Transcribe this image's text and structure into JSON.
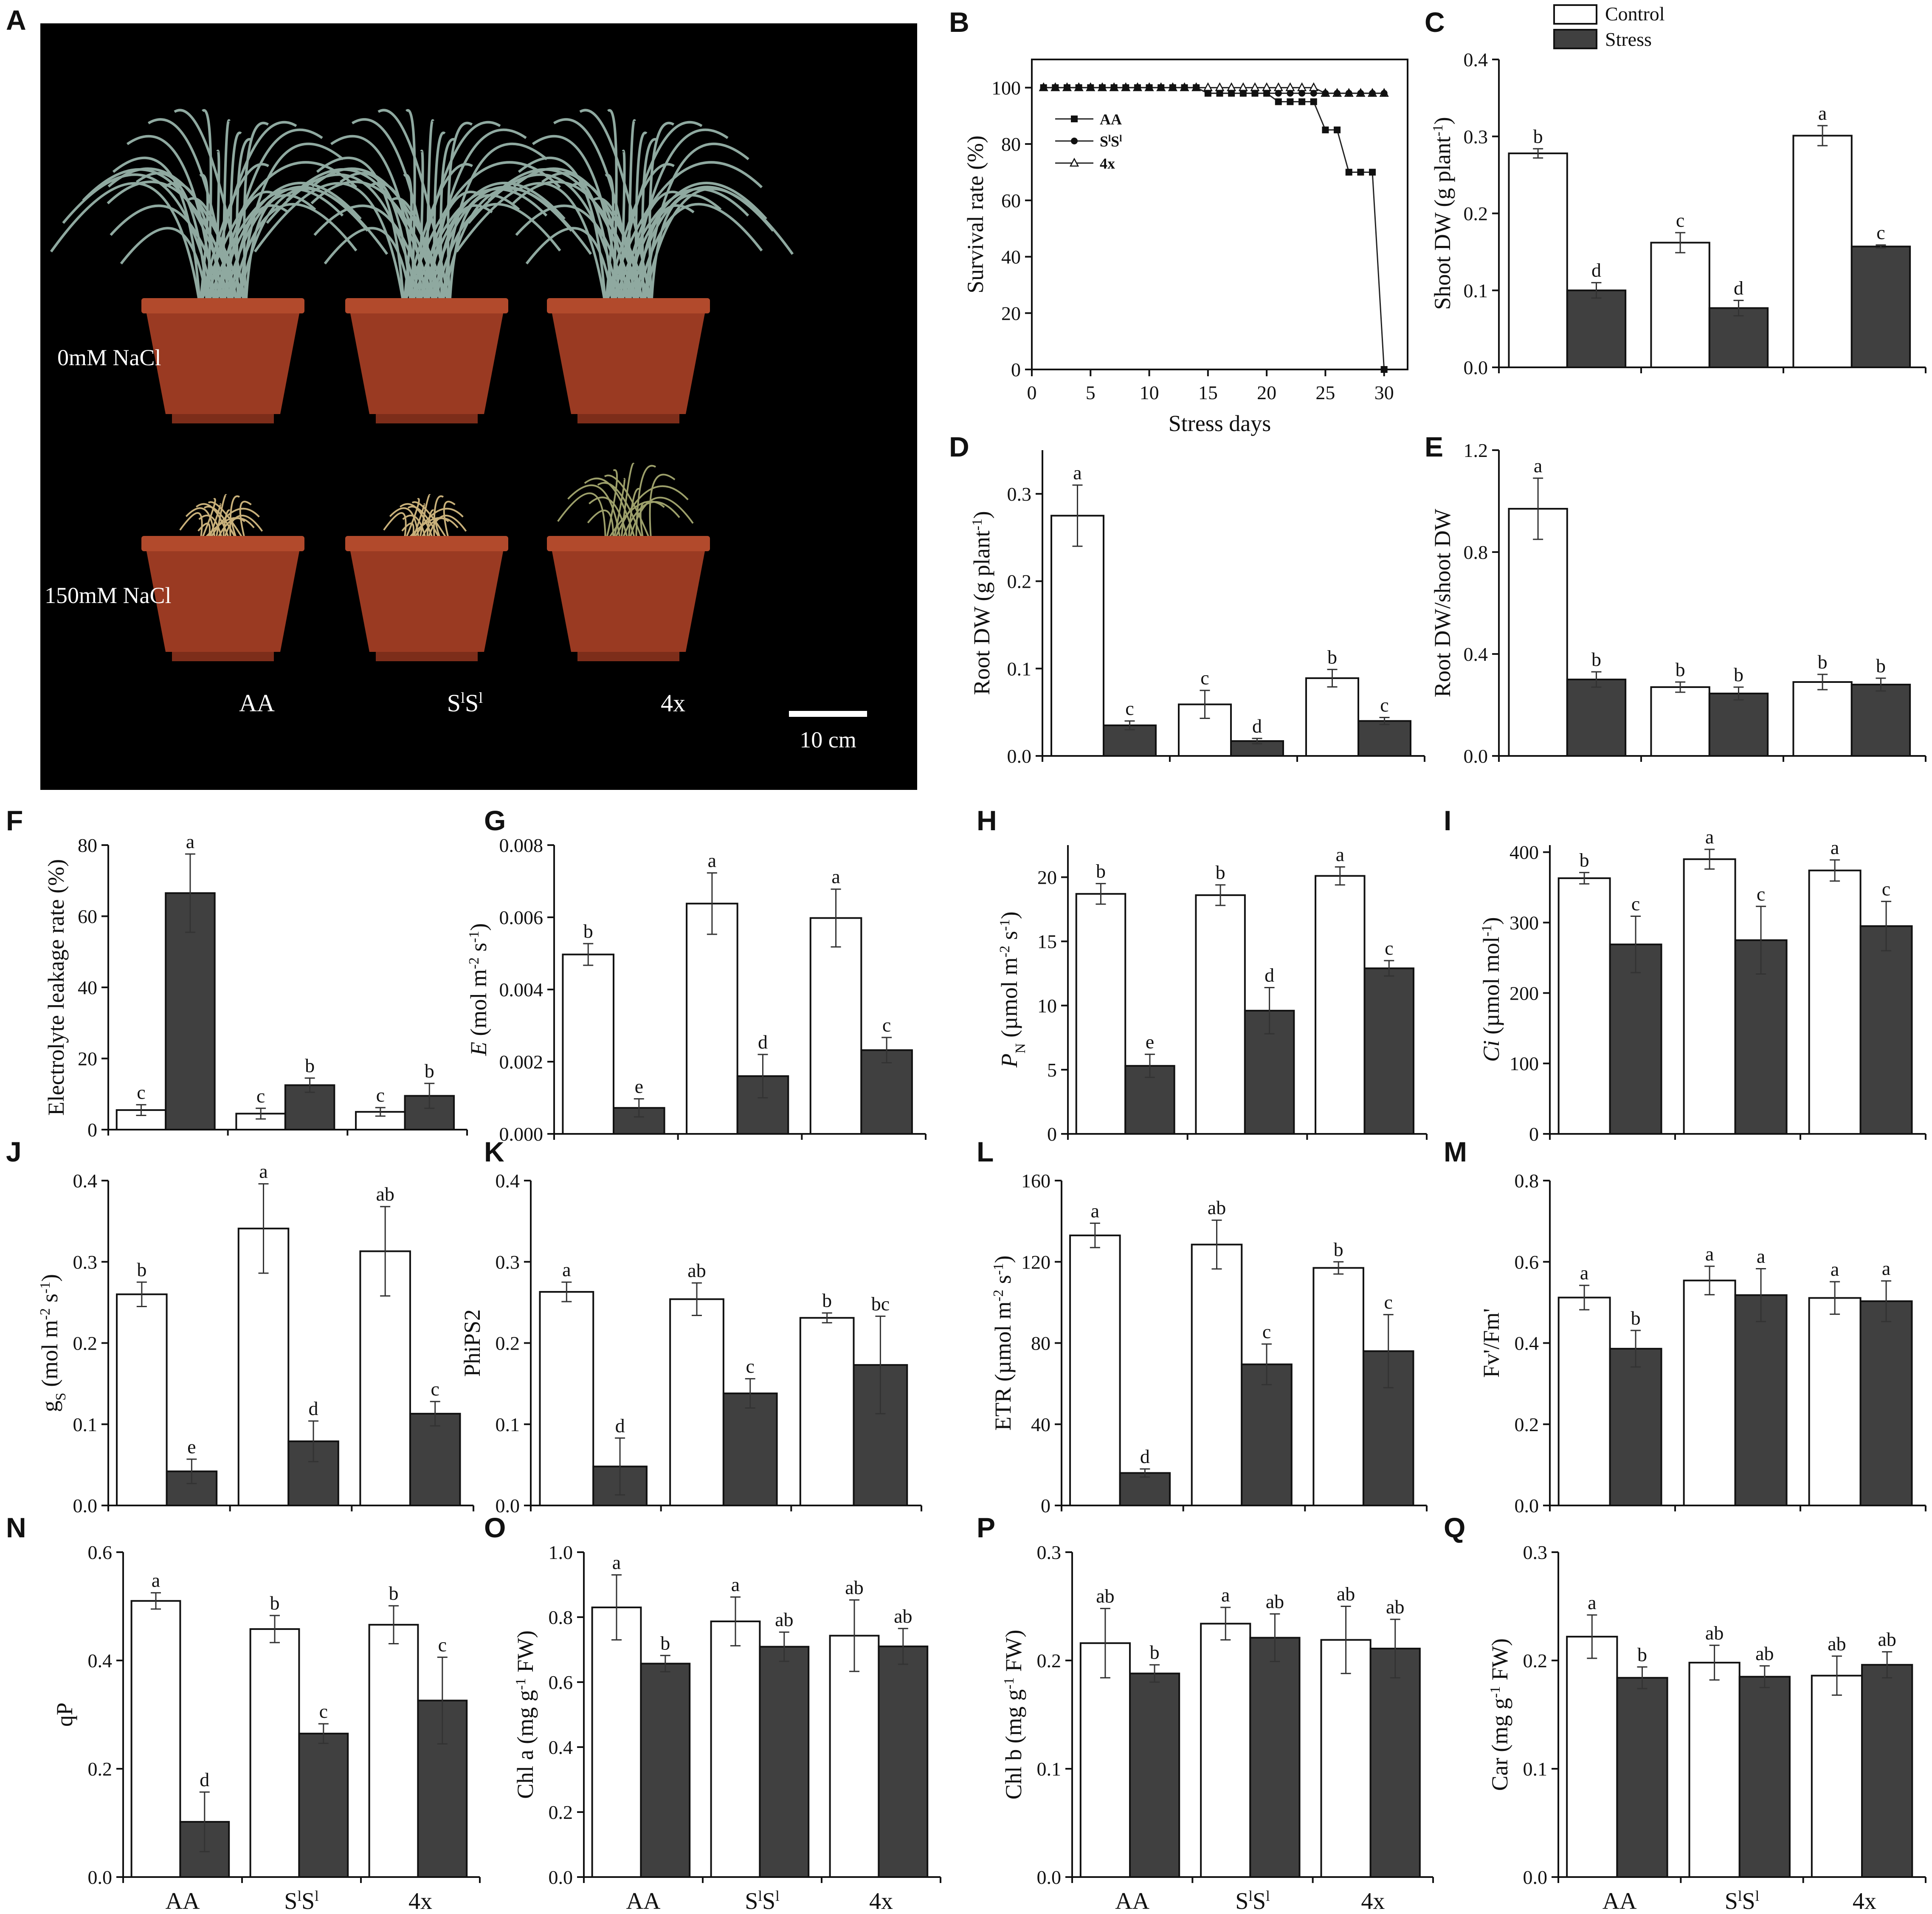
{
  "legend": {
    "control": "Control",
    "stress": "Stress"
  },
  "colors": {
    "control": "#ffffff",
    "stress": "#404040",
    "axis": "#111111",
    "photo_bg": "#000000",
    "pot": "#9a3a22",
    "grass": "#8fa9a0"
  },
  "photo": {
    "label": "A",
    "row_labels": [
      "0mM NaCl",
      "150mM NaCl"
    ],
    "genotypes": [
      "AA",
      "S",
      "4x"
    ],
    "scale_label": "10 cm"
  },
  "genotype_labels": [
    "AA",
    "S",
    "4x"
  ],
  "chart_data": [
    {
      "label": "B",
      "type": "line",
      "xlabel": "Stress days",
      "ylabel": "Survival rate (%)",
      "xlim": [
        0,
        32
      ],
      "ylim": [
        0,
        110
      ],
      "xticks": [
        0,
        5,
        10,
        15,
        20,
        25,
        30
      ],
      "yticks": [
        0,
        20,
        40,
        60,
        80,
        100
      ],
      "legend_position": "left-upper",
      "series": [
        {
          "name": "AA",
          "marker": "square",
          "x": [
            1,
            2,
            3,
            4,
            5,
            6,
            7,
            8,
            9,
            10,
            11,
            12,
            13,
            14,
            15,
            16,
            17,
            18,
            19,
            20,
            21,
            22,
            23,
            24,
            25,
            26,
            27,
            28,
            29,
            30
          ],
          "y": [
            100,
            100,
            100,
            100,
            100,
            100,
            100,
            100,
            100,
            100,
            100,
            100,
            100,
            100,
            98,
            98,
            98,
            98,
            98,
            98,
            95,
            95,
            95,
            95,
            85,
            85,
            70,
            70,
            70,
            0
          ]
        },
        {
          "name": "S",
          "marker": "circle",
          "x": [
            1,
            2,
            3,
            4,
            5,
            6,
            7,
            8,
            9,
            10,
            11,
            12,
            13,
            14,
            15,
            16,
            17,
            18,
            19,
            20,
            21,
            22,
            23,
            24,
            25,
            26,
            27,
            28,
            29,
            30
          ],
          "y": [
            100,
            100,
            100,
            100,
            100,
            100,
            100,
            100,
            100,
            100,
            100,
            100,
            100,
            100,
            98,
            98,
            98,
            98,
            98,
            98,
            98,
            98,
            98,
            98,
            98,
            98,
            98,
            98,
            98,
            98
          ]
        },
        {
          "name": "4x",
          "marker": "triangle",
          "x": [
            1,
            2,
            3,
            4,
            5,
            6,
            7,
            8,
            9,
            10,
            11,
            12,
            13,
            14,
            15,
            16,
            17,
            18,
            19,
            20,
            21,
            22,
            23,
            24,
            25,
            26,
            27,
            28,
            29,
            30
          ],
          "y": [
            100,
            100,
            100,
            100,
            100,
            100,
            100,
            100,
            100,
            100,
            100,
            100,
            100,
            100,
            100,
            100,
            100,
            100,
            100,
            100,
            100,
            100,
            100,
            100,
            98,
            98,
            98,
            98,
            98,
            98
          ]
        }
      ]
    },
    {
      "label": "C",
      "type": "bar",
      "ylabel": "Shoot DW (g plant",
      "ylabel_sup": "-1",
      "ylabel_end": ")",
      "ylim": [
        0,
        0.4
      ],
      "yticks": [
        "0.0",
        "0.1",
        "0.2",
        "0.3",
        "0.4"
      ],
      "control": [
        0.278,
        0.162,
        0.301
      ],
      "stress": [
        0.1,
        0.077,
        0.157
      ],
      "control_err": [
        0.006,
        0.013,
        0.013
      ],
      "stress_err": [
        0.01,
        0.01,
        0.002
      ],
      "control_letters": [
        "b",
        "c",
        "a"
      ],
      "stress_letters": [
        "d",
        "d",
        "c"
      ]
    },
    {
      "label": "D",
      "type": "bar",
      "ylabel": "Root DW (g plant",
      "ylabel_sup": "-1",
      "ylabel_end": ")",
      "ylim": [
        0,
        0.35
      ],
      "yticks": [
        "0.0",
        "0.1",
        "0.2",
        "0.3"
      ],
      "control": [
        0.275,
        0.059,
        0.089
      ],
      "stress": [
        0.035,
        0.017,
        0.04
      ],
      "control_err": [
        0.035,
        0.016,
        0.01
      ],
      "stress_err": [
        0.005,
        0.003,
        0.004
      ],
      "control_letters": [
        "a",
        "c",
        "b"
      ],
      "stress_letters": [
        "c",
        "d",
        "c"
      ]
    },
    {
      "label": "E",
      "type": "bar",
      "ylabel": "Root DW/shoot DW",
      "ylim": [
        0,
        1.2
      ],
      "yticks": [
        "0.0",
        "0.4",
        "0.8",
        "1.2"
      ],
      "control": [
        0.97,
        0.27,
        0.29
      ],
      "stress": [
        0.3,
        0.245,
        0.28
      ],
      "control_err": [
        0.12,
        0.02,
        0.03
      ],
      "stress_err": [
        0.03,
        0.025,
        0.025
      ],
      "control_letters": [
        "a",
        "b",
        "b"
      ],
      "stress_letters": [
        "b",
        "b",
        "b"
      ]
    },
    {
      "label": "F",
      "type": "bar",
      "ylabel": "Electrolyte leakage rate  (%)",
      "ylim": [
        0,
        80
      ],
      "yticks": [
        "0",
        "20",
        "40",
        "60",
        "80"
      ],
      "control": [
        5.5,
        4.5,
        5.0
      ],
      "stress": [
        66.5,
        12.5,
        9.5
      ],
      "control_err": [
        1.5,
        1.5,
        1.2
      ],
      "stress_err": [
        11.0,
        2.0,
        3.5
      ],
      "control_letters": [
        "c",
        "c",
        "c"
      ],
      "stress_letters": [
        "a",
        "b",
        "b"
      ]
    },
    {
      "label": "G",
      "type": "bar",
      "ylabel_italic": "E",
      "ylabel": " (mol m",
      "ylabel_sup": "-2",
      "ylabel_mid": " s",
      "ylabel_sup2": "-1",
      "ylabel_end": ")",
      "ylim": [
        0,
        0.008
      ],
      "yticks": [
        "0.000",
        "0.002",
        "0.004",
        "0.006",
        "0.008"
      ],
      "control": [
        0.00497,
        0.00638,
        0.00598
      ],
      "stress": [
        0.00072,
        0.0016,
        0.00232
      ],
      "control_err": [
        0.0003,
        0.00085,
        0.0008
      ],
      "stress_err": [
        0.00025,
        0.0006,
        0.00035
      ],
      "control_letters": [
        "b",
        "a",
        "a"
      ],
      "stress_letters": [
        "e",
        "d",
        "c"
      ]
    },
    {
      "label": "H",
      "type": "bar",
      "ylabel_italic": "P",
      "ylabel_sub": "N",
      "ylabel": " (µmol m",
      "ylabel_sup": "-2",
      "ylabel_mid": " s",
      "ylabel_sup2": "-1",
      "ylabel_end": ")",
      "ylim": [
        0,
        22.5
      ],
      "yticks": [
        "0",
        "5",
        "10",
        "15",
        "20"
      ],
      "control": [
        18.7,
        18.6,
        20.1
      ],
      "stress": [
        5.3,
        9.6,
        12.9
      ],
      "control_err": [
        0.8,
        0.8,
        0.7
      ],
      "stress_err": [
        0.9,
        1.8,
        0.6
      ],
      "control_letters": [
        "b",
        "b",
        "a"
      ],
      "stress_letters": [
        "e",
        "d",
        "c"
      ]
    },
    {
      "label": "I",
      "type": "bar",
      "ylabel_italic": "Ci",
      "ylabel": " (µmol mol",
      "ylabel_sup": "-1",
      "ylabel_end": ")",
      "ylim": [
        0,
        410
      ],
      "yticks": [
        "0",
        "100",
        "200",
        "300",
        "400"
      ],
      "control": [
        363,
        390,
        374
      ],
      "stress": [
        269,
        275,
        295
      ],
      "control_err": [
        8,
        14,
        15
      ],
      "stress_err": [
        40,
        48,
        35
      ],
      "control_letters": [
        "b",
        "a",
        "a"
      ],
      "stress_letters": [
        "c",
        "c",
        "c"
      ]
    },
    {
      "label": "J",
      "type": "bar",
      "ylabel": "g",
      "ylabel_sub": "S",
      "ylabel_rest": " (mol m",
      "ylabel_sup": "-2",
      "ylabel_mid": " s",
      "ylabel_sup2": "-1",
      "ylabel_end": ")",
      "ylim": [
        0,
        0.4
      ],
      "yticks": [
        "0.0",
        "0.1",
        "0.2",
        "0.3",
        "0.4"
      ],
      "control": [
        0.26,
        0.341,
        0.313
      ],
      "stress": [
        0.042,
        0.079,
        0.113
      ],
      "control_err": [
        0.015,
        0.055,
        0.055
      ],
      "stress_err": [
        0.015,
        0.025,
        0.015
      ],
      "control_letters": [
        "b",
        "a",
        "ab"
      ],
      "stress_letters": [
        "e",
        "d",
        "c"
      ]
    },
    {
      "label": "K",
      "type": "bar",
      "ylabel": "PhiPS2",
      "ylim": [
        0,
        0.4
      ],
      "yticks": [
        "0.0",
        "0.1",
        "0.2",
        "0.3",
        "0.4"
      ],
      "control": [
        0.263,
        0.254,
        0.231
      ],
      "stress": [
        0.048,
        0.138,
        0.173
      ],
      "control_err": [
        0.012,
        0.02,
        0.006
      ],
      "stress_err": [
        0.035,
        0.018,
        0.06
      ],
      "control_letters": [
        "a",
        "ab",
        "b"
      ],
      "stress_letters": [
        "d",
        "c",
        "bc"
      ]
    },
    {
      "label": "L",
      "type": "bar",
      "ylabel": "ETR (µmol m",
      "ylabel_sup": "-2",
      "ylabel_mid": " s",
      "ylabel_sup2": "-1",
      "ylabel_end": ")",
      "ylim": [
        0,
        160
      ],
      "yticks": [
        "0",
        "40",
        "80",
        "120",
        "160"
      ],
      "control": [
        133,
        128.5,
        117
      ],
      "stress": [
        16,
        69.5,
        76
      ],
      "control_err": [
        6,
        12,
        3
      ],
      "stress_err": [
        2,
        10,
        18
      ],
      "control_letters": [
        "a",
        "ab",
        "b"
      ],
      "stress_letters": [
        "d",
        "c",
        "c"
      ]
    },
    {
      "label": "M",
      "type": "bar",
      "ylabel": "Fv'/Fm'",
      "ylim": [
        0,
        0.8
      ],
      "yticks": [
        "0.0",
        "0.2",
        "0.4",
        "0.6",
        "0.8"
      ],
      "control": [
        0.512,
        0.554,
        0.511
      ],
      "stress": [
        0.386,
        0.518,
        0.503
      ],
      "control_err": [
        0.03,
        0.035,
        0.04
      ],
      "stress_err": [
        0.045,
        0.065,
        0.05
      ],
      "control_letters": [
        "a",
        "a",
        "a"
      ],
      "stress_letters": [
        "b",
        "a",
        "a"
      ]
    },
    {
      "label": "N",
      "type": "bar",
      "ylabel": "qP",
      "ylim": [
        0,
        0.6
      ],
      "yticks": [
        "0.0",
        "0.2",
        "0.4",
        "0.6"
      ],
      "control": [
        0.51,
        0.458,
        0.466
      ],
      "stress": [
        0.102,
        0.265,
        0.326
      ],
      "control_err": [
        0.015,
        0.025,
        0.035
      ],
      "stress_err": [
        0.055,
        0.018,
        0.08
      ],
      "control_letters": [
        "a",
        "b",
        "b"
      ],
      "stress_letters": [
        "d",
        "c",
        "c"
      ]
    },
    {
      "label": "O",
      "type": "bar",
      "ylabel": "Chl a (mg g",
      "ylabel_sup": "-1",
      "ylabel_end": " FW)",
      "ylim": [
        0,
        1.0
      ],
      "yticks": [
        "0.0",
        "0.2",
        "0.4",
        "0.6",
        "0.8",
        "1.0"
      ],
      "control": [
        0.83,
        0.787,
        0.743
      ],
      "stress": [
        0.657,
        0.709,
        0.71
      ],
      "control_err": [
        0.1,
        0.075,
        0.11
      ],
      "stress_err": [
        0.025,
        0.045,
        0.055
      ],
      "control_letters": [
        "a",
        "a",
        "ab"
      ],
      "stress_letters": [
        "b",
        "ab",
        "ab"
      ]
    },
    {
      "label": "P",
      "type": "bar",
      "ylabel": "Chl b (mg g",
      "ylabel_sup": "-1",
      "ylabel_end": " FW)",
      "ylim": [
        0,
        0.3
      ],
      "yticks": [
        "0.0",
        "0.1",
        "0.2",
        "0.3"
      ],
      "control": [
        0.216,
        0.234,
        0.219
      ],
      "stress": [
        0.188,
        0.221,
        0.211
      ],
      "control_err": [
        0.032,
        0.015,
        0.031
      ],
      "stress_err": [
        0.008,
        0.022,
        0.027
      ],
      "control_letters": [
        "ab",
        "a",
        "ab"
      ],
      "stress_letters": [
        "b",
        "ab",
        "ab"
      ]
    },
    {
      "label": "Q",
      "type": "bar",
      "ylabel": "Car (mg g",
      "ylabel_sup": "-1",
      "ylabel_end": " FW)",
      "ylim": [
        0,
        0.3
      ],
      "yticks": [
        "0.0",
        "0.1",
        "0.2",
        "0.3"
      ],
      "control": [
        0.222,
        0.198,
        0.186
      ],
      "stress": [
        0.184,
        0.185,
        0.196
      ],
      "control_err": [
        0.02,
        0.016,
        0.018
      ],
      "stress_err": [
        0.01,
        0.01,
        0.012
      ],
      "control_letters": [
        "a",
        "ab",
        "ab"
      ],
      "stress_letters": [
        "b",
        "ab",
        "ab"
      ]
    }
  ]
}
